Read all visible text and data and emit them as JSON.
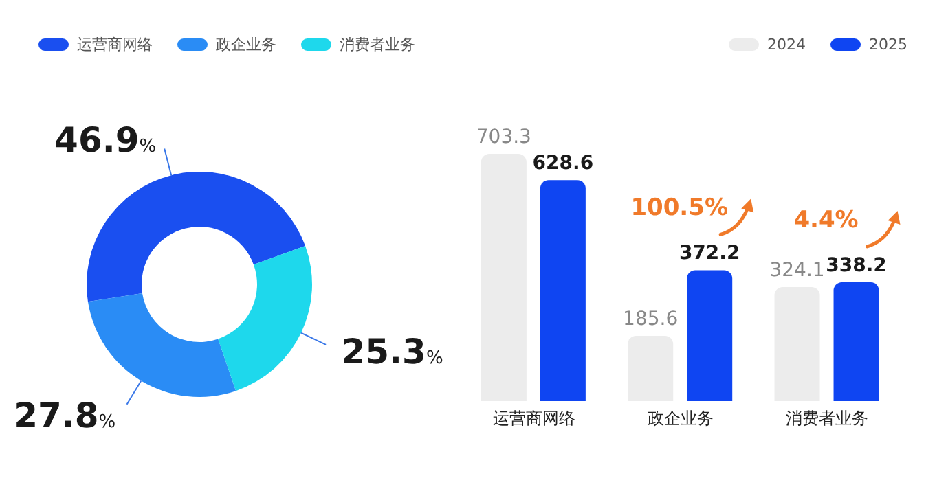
{
  "chart_data": [
    {
      "type": "donut",
      "categories": [
        "运营商网络",
        "政企业务",
        "消费者业务"
      ],
      "values": [
        46.9,
        27.8,
        25.3
      ],
      "colors": [
        "#1a4ff0",
        "#2a8cf5",
        "#1ed8ec"
      ],
      "data_labels": true,
      "value_labels": [
        "46.9%",
        "27.8%",
        "25.3%"
      ],
      "legend": "top"
    },
    {
      "type": "bar",
      "categories": [
        "运营商网络",
        "政企业务",
        "消费者业务"
      ],
      "series": [
        {
          "name": "2024",
          "color": "#ececec",
          "values": [
            703.3,
            185.6,
            324.1
          ]
        },
        {
          "name": "2025",
          "color": "#0f45f2",
          "values": [
            628.6,
            372.2,
            338.2
          ]
        }
      ],
      "data_labels": true,
      "legend": "top right",
      "annotations": [
        "100.5%",
        "4.4%"
      ]
    }
  ]
}
